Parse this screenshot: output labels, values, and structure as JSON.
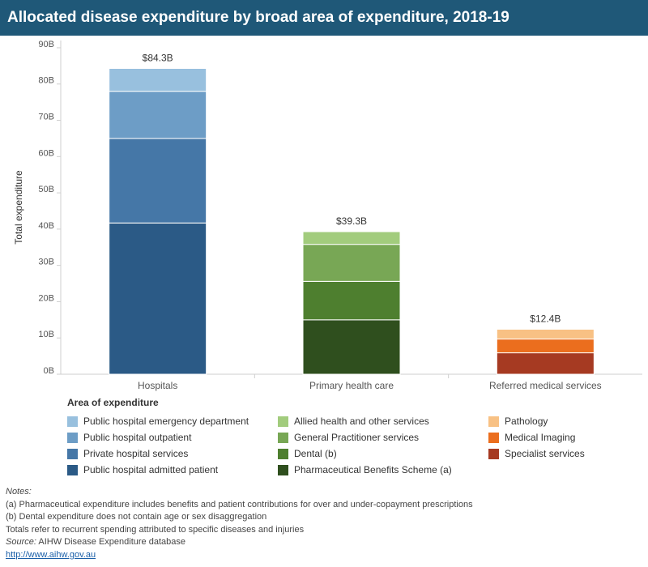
{
  "title": "Allocated disease expenditure by broad area of expenditure, 2018-19",
  "chart_data": {
    "type": "bar",
    "stacked": true,
    "ylabel": "Total expenditure",
    "ylim": [
      0,
      92
    ],
    "yticks": [
      0,
      10,
      20,
      30,
      40,
      50,
      60,
      70,
      80,
      90
    ],
    "ytick_labels": [
      "0B",
      "10B",
      "20B",
      "30B",
      "40B",
      "50B",
      "60B",
      "70B",
      "80B",
      "90B"
    ],
    "categories": [
      "Hospitals",
      "Primary health care",
      "Referred medical services"
    ],
    "totals": [
      84.3,
      39.3,
      12.4
    ],
    "total_labels": [
      "$84.3B",
      "$39.3B",
      "$12.4B"
    ],
    "grid": false,
    "legend_title": "Area of expenditure",
    "legend_position": "bottom",
    "stacks": [
      [
        {
          "name": "Public hospital admitted patient",
          "value": 41.7,
          "color": "#2b5a86"
        },
        {
          "name": "Private hospital services",
          "value": 23.3,
          "color": "#4577a7"
        },
        {
          "name": "Public hospital outpatient",
          "value": 13.0,
          "color": "#6d9dc6"
        },
        {
          "name": "Public hospital emergency department",
          "value": 6.3,
          "color": "#98c0de"
        }
      ],
      [
        {
          "name": "Pharmaceutical Benefits Scheme (a)",
          "value": 15.0,
          "color": "#2f4f1e"
        },
        {
          "name": "Dental (b)",
          "value": 10.6,
          "color": "#4e7f2f"
        },
        {
          "name": "General Practitioner services",
          "value": 10.2,
          "color": "#78a755"
        },
        {
          "name": "Allied health and other services",
          "value": 3.5,
          "color": "#a2cc7d"
        }
      ],
      [
        {
          "name": "Specialist services",
          "value": 5.9,
          "color": "#a63a22"
        },
        {
          "name": "Medical Imaging",
          "value": 3.8,
          "color": "#eb6e1e"
        },
        {
          "name": "Pathology",
          "value": 2.7,
          "color": "#f8c184"
        }
      ]
    ]
  },
  "legend": [
    {
      "label": "Public hospital emergency department",
      "color": "#98c0de"
    },
    {
      "label": "Public hospital outpatient",
      "color": "#6d9dc6"
    },
    {
      "label": "Private hospital services",
      "color": "#4577a7"
    },
    {
      "label": "Public hospital admitted patient",
      "color": "#2b5a86"
    },
    {
      "label": "Allied health and other services",
      "color": "#a2cc7d"
    },
    {
      "label": "General Practitioner services",
      "color": "#78a755"
    },
    {
      "label": "Dental (b)",
      "color": "#4e7f2f"
    },
    {
      "label": "Pharmaceutical Benefits Scheme (a)",
      "color": "#2f4f1e"
    },
    {
      "label": "Pathology",
      "color": "#f8c184"
    },
    {
      "label": "Medical Imaging",
      "color": "#eb6e1e"
    },
    {
      "label": "Specialist services",
      "color": "#a63a22"
    }
  ],
  "notes": {
    "heading": "Notes:",
    "lines": [
      "(a) Pharmaceutical expenditure includes benefits and patient contributions for over and under-copayment prescriptions",
      "(b) Dental expenditure does not contain age or sex disaggregation",
      "Totals refer to recurrent spending attributed to specific diseases and injuries"
    ],
    "source_label": "Source:",
    "source_text": " AIHW Disease Expenditure database",
    "link": "http://www.aihw.gov.au"
  }
}
